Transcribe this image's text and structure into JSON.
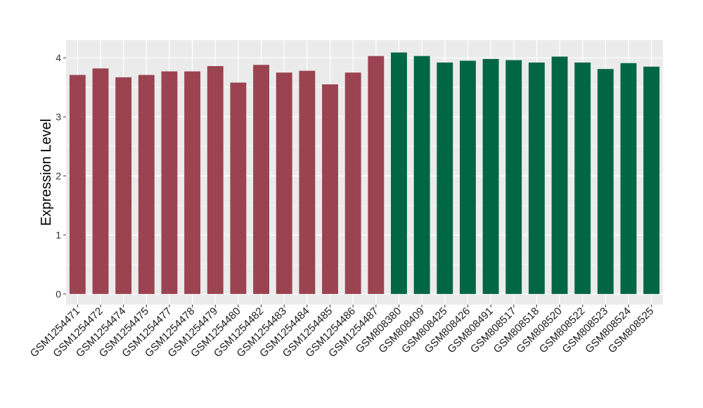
{
  "chart_data": {
    "type": "bar",
    "title": "",
    "xlabel": "",
    "ylabel": "Expression Level",
    "ylim": [
      -0.18,
      4.3
    ],
    "yticks": [
      0,
      1,
      2,
      3,
      4
    ],
    "grid": true,
    "legend": "none",
    "categories": [
      "GSM1254471",
      "GSM1254472",
      "GSM1254474",
      "GSM1254475",
      "GSM1254477",
      "GSM1254478",
      "GSM1254479",
      "GSM1254480",
      "GSM1254482",
      "GSM1254483",
      "GSM1254484",
      "GSM1254485",
      "GSM1254486",
      "GSM1254487",
      "GSM808380",
      "GSM808409",
      "GSM808425",
      "GSM808426",
      "GSM808491",
      "GSM808517",
      "GSM808518",
      "GSM808520",
      "GSM808522",
      "GSM808523",
      "GSM808524",
      "GSM808525"
    ],
    "values": [
      3.71,
      3.82,
      3.67,
      3.71,
      3.77,
      3.77,
      3.86,
      3.58,
      3.88,
      3.75,
      3.78,
      3.55,
      3.75,
      4.03,
      4.09,
      4.03,
      3.92,
      3.95,
      3.98,
      3.96,
      3.92,
      4.02,
      3.92,
      3.81,
      3.91,
      3.85
    ],
    "groups": [
      "A",
      "A",
      "A",
      "A",
      "A",
      "A",
      "A",
      "A",
      "A",
      "A",
      "A",
      "A",
      "A",
      "A",
      "B",
      "B",
      "B",
      "B",
      "B",
      "B",
      "B",
      "B",
      "B",
      "B",
      "B",
      "B"
    ],
    "colors": {
      "A": "#9B4351",
      "B": "#006643"
    },
    "panel_background": "#EBEBEB",
    "grid_color": "#FFFFFF"
  }
}
